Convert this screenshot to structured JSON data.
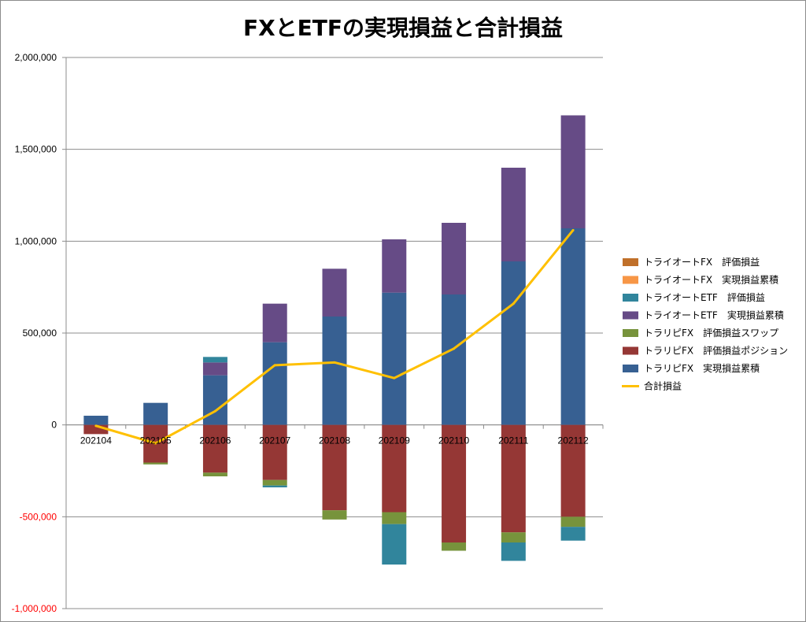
{
  "chart_data": {
    "type": "bar",
    "stacked": true,
    "title": "FXとETFの実現損益と合計損益",
    "xlabel": "",
    "ylabel": "",
    "ylim": [
      -1000000,
      2000000
    ],
    "yticks": [
      2000000,
      1500000,
      1000000,
      500000,
      0,
      -500000,
      -1000000
    ],
    "ytick_labels": [
      "2,000,000",
      "1,500,000",
      "1,000,000",
      "500,000",
      "0",
      "-500,000",
      "-1,000,000"
    ],
    "negative_tick_color": "#ff0000",
    "grid": true,
    "legend_position": "right",
    "categories": [
      "202104",
      "202105",
      "202106",
      "202107",
      "202108",
      "202109",
      "202110",
      "202111",
      "202112"
    ],
    "series": [
      {
        "name": "トライオートFX　評価損益",
        "kind": "bar",
        "color": "#c0702a",
        "values": [
          0,
          0,
          0,
          0,
          0,
          0,
          0,
          0,
          0
        ]
      },
      {
        "name": "トライオートFX　実現損益累積",
        "kind": "bar",
        "color": "#f79646",
        "values": [
          0,
          0,
          0,
          0,
          0,
          0,
          0,
          0,
          0
        ]
      },
      {
        "name": "トライオートETF　評価損益",
        "kind": "bar",
        "color": "#31859c",
        "values": [
          0,
          0,
          30000,
          -10000,
          0,
          -220000,
          0,
          -100000,
          -75000
        ]
      },
      {
        "name": "トライオートETF　実現損益累積",
        "kind": "bar",
        "color": "#664b86",
        "values": [
          0,
          0,
          70000,
          210000,
          260000,
          290000,
          390000,
          510000,
          615000
        ]
      },
      {
        "name": "トラリピFX　評価損益スワップ",
        "kind": "bar",
        "color": "#77933c",
        "values": [
          0,
          -10000,
          -20000,
          -30000,
          -50000,
          -65000,
          -45000,
          -55000,
          -55000
        ]
      },
      {
        "name": "トラリピFX　評価損益ポジション",
        "kind": "bar",
        "color": "#953735",
        "values": [
          -50000,
          -205000,
          -260000,
          -300000,
          -465000,
          -475000,
          -640000,
          -585000,
          -500000
        ]
      },
      {
        "name": "トラリピFX　実現損益累積",
        "kind": "bar",
        "color": "#376092",
        "values": [
          50000,
          120000,
          270000,
          450000,
          590000,
          720000,
          710000,
          890000,
          1070000
        ]
      },
      {
        "name": "合計損益",
        "kind": "line",
        "color": "#ffc000",
        "values": [
          -5000,
          -100000,
          75000,
          325000,
          340000,
          255000,
          415000,
          660000,
          1060000
        ]
      }
    ]
  }
}
